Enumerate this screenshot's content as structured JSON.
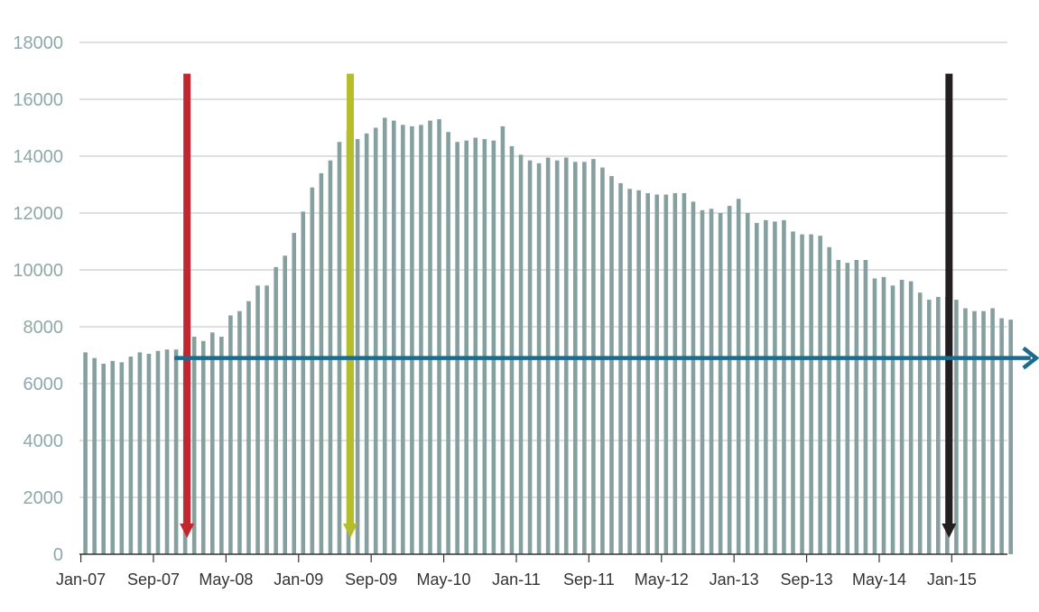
{
  "chart_data": {
    "type": "bar",
    "title": "",
    "xlabel": "",
    "ylabel": "",
    "ylim": [
      0,
      18000
    ],
    "yticks": [
      0,
      2000,
      4000,
      6000,
      8000,
      10000,
      12000,
      14000,
      16000,
      18000
    ],
    "grid": "horizontal",
    "x_tick_labels": [
      "Jan-07",
      "Sep-07",
      "May-08",
      "Jan-09",
      "Sep-09",
      "May-10",
      "Jan-11",
      "Sep-11",
      "May-12",
      "Jan-13",
      "Sep-13",
      "May-14",
      "Jan-15"
    ],
    "x_tick_months": [
      "2007-01",
      "2007-09",
      "2008-05",
      "2009-01",
      "2009-09",
      "2010-05",
      "2011-01",
      "2011-09",
      "2012-05",
      "2013-01",
      "2013-09",
      "2014-05",
      "2015-01"
    ],
    "start_month": "2007-01",
    "values": [
      7100,
      6900,
      6700,
      6800,
      6750,
      6950,
      7100,
      7050,
      7150,
      7200,
      7200,
      7150,
      7650,
      7500,
      7800,
      7650,
      8400,
      8550,
      8900,
      9450,
      9450,
      10100,
      10500,
      11300,
      12050,
      12900,
      13400,
      13850,
      14500,
      14900,
      14600,
      14800,
      15000,
      15350,
      15250,
      15100,
      15050,
      15100,
      15250,
      15300,
      14850,
      14500,
      14550,
      14650,
      14600,
      14550,
      15050,
      14350,
      14050,
      13850,
      13750,
      13950,
      13850,
      13950,
      13800,
      13800,
      13900,
      13600,
      13300,
      13050,
      12850,
      12800,
      12700,
      12650,
      12650,
      12700,
      12700,
      12400,
      12100,
      12150,
      12000,
      12250,
      12500,
      12000,
      11650,
      11750,
      11700,
      11750,
      11350,
      11250,
      11250,
      11200,
      10800,
      10350,
      10250,
      10350,
      10350,
      9700,
      9750,
      9450,
      9650,
      9600,
      9200,
      8950,
      9050,
      9050,
      8950,
      8650,
      8550,
      8550,
      8650,
      8300,
      8250
    ],
    "bar_color": "#86a09f",
    "annotations": [
      {
        "type": "vertical-arrow",
        "month": "2007-12",
        "from": 16900,
        "to": 700,
        "color": "#c1272d"
      },
      {
        "type": "vertical-arrow",
        "month": "2009-06",
        "from": 16900,
        "to": 700,
        "color": "#b5bd2a"
      },
      {
        "type": "vertical-arrow",
        "month": "2014-12",
        "from": 16900,
        "to": 700,
        "color": "#231f20"
      },
      {
        "type": "horizontal-arrow",
        "y": 6900,
        "from_month": "2007-11",
        "to_month": "2015-09",
        "color": "#1b6b8e"
      }
    ]
  }
}
